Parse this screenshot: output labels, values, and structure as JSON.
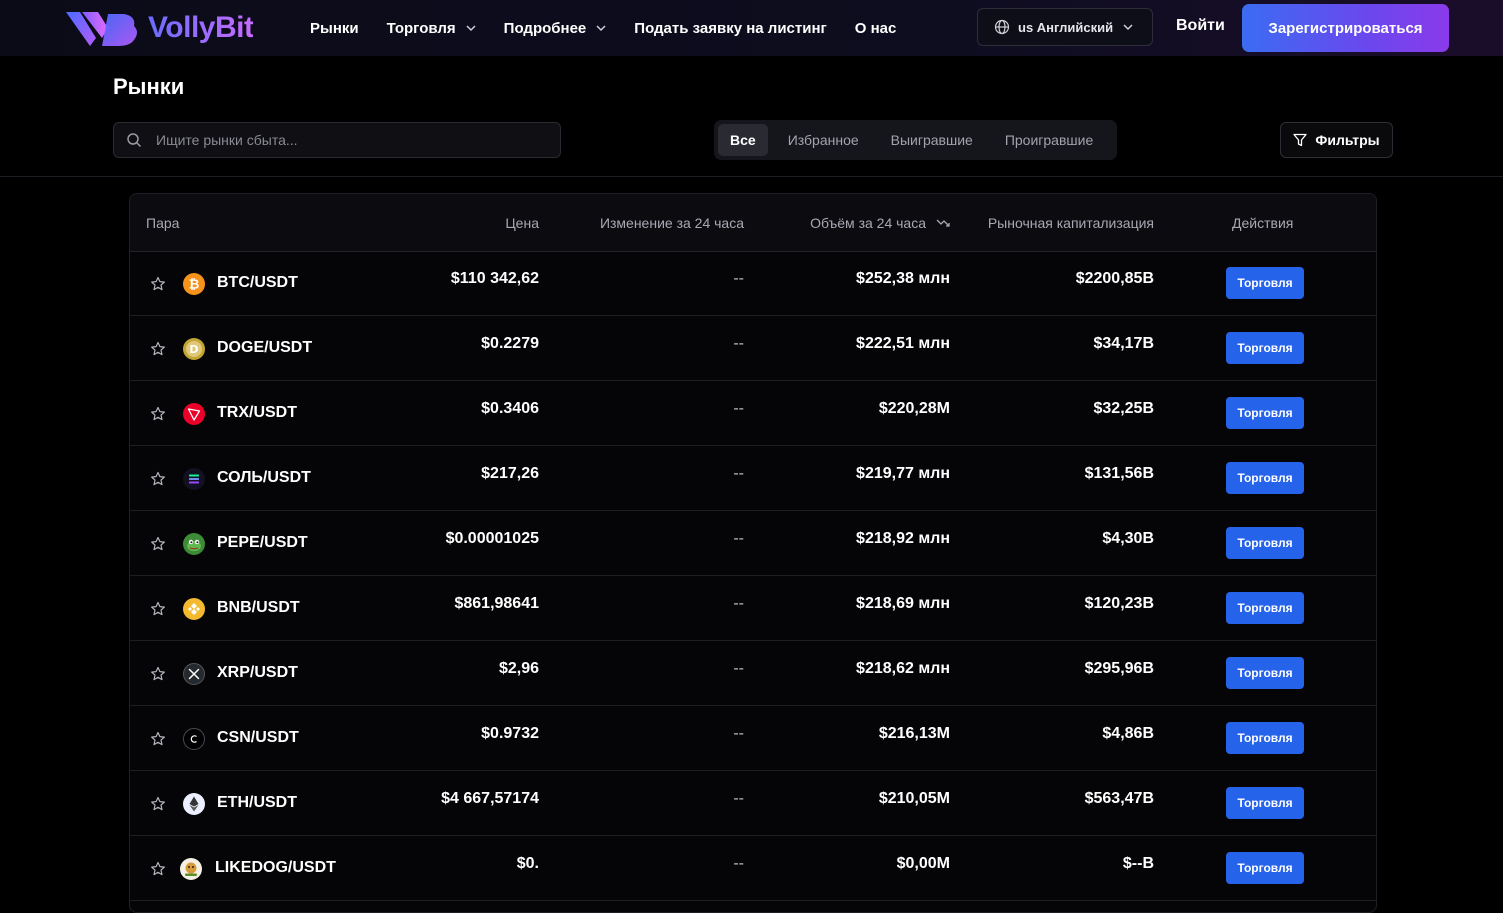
{
  "header": {
    "logo_text": "VollyBit",
    "nav": [
      {
        "label": "Рынки",
        "has_dropdown": false
      },
      {
        "label": "Торговля",
        "has_dropdown": true
      },
      {
        "label": "Подробнее",
        "has_dropdown": true
      },
      {
        "label": "Подать заявку на листинг",
        "has_dropdown": false
      },
      {
        "label": "О нас",
        "has_dropdown": false
      }
    ],
    "language": "us Английский",
    "login_label": "Войти",
    "register_label": "Зарегистрироваться"
  },
  "page": {
    "title": "Рынки",
    "search_placeholder": "Ищите рынки сбыта...",
    "tabs": [
      {
        "label": "Все",
        "active": true
      },
      {
        "label": "Избранное",
        "active": false
      },
      {
        "label": "Выигравшие",
        "active": false
      },
      {
        "label": "Проигравшие",
        "active": false
      }
    ],
    "filters_label": "Фильтры"
  },
  "table": {
    "columns": {
      "pair": "Пара",
      "price": "Цена",
      "change": "Изменение за 24 часа",
      "volume": "Объём за 24 часа",
      "market_cap": "Рыночная капитализация",
      "actions": "Действия"
    },
    "trade_label": "Торговля",
    "rows": [
      {
        "pair": "BTC/USDT",
        "icon": "btc-icon",
        "price": "$110 342,62",
        "change": "--",
        "volume": "$252,38 млн",
        "market_cap": "$2200,85B"
      },
      {
        "pair": "DOGE/USDT",
        "icon": "doge-icon",
        "price": "$0.2279",
        "change": "--",
        "volume": "$222,51 млн",
        "market_cap": "$34,17B"
      },
      {
        "pair": "TRX/USDT",
        "icon": "trx-icon",
        "price": "$0.3406",
        "change": "--",
        "volume": "$220,28M",
        "market_cap": "$32,25B"
      },
      {
        "pair": "СОЛЬ/USDT",
        "icon": "sol-icon",
        "price": "$217,26",
        "change": "--",
        "volume": "$219,77 млн",
        "market_cap": "$131,56B"
      },
      {
        "pair": "PEPE/USDT",
        "icon": "pepe-icon",
        "price": "$0.00001025",
        "change": "--",
        "volume": "$218,92 млн",
        "market_cap": "$4,30B"
      },
      {
        "pair": "BNB/USDT",
        "icon": "bnb-icon",
        "price": "$861,98641",
        "change": "--",
        "volume": "$218,69 млн",
        "market_cap": "$120,23B"
      },
      {
        "pair": "XRP/USDT",
        "icon": "xrp-icon",
        "price": "$2,96",
        "change": "--",
        "volume": "$218,62 млн",
        "market_cap": "$295,96B"
      },
      {
        "pair": "CSN/USDT",
        "icon": "csn-icon",
        "price": "$0.9732",
        "change": "--",
        "volume": "$216,13M",
        "market_cap": "$4,86B"
      },
      {
        "pair": "ETH/USDT",
        "icon": "eth-icon",
        "price": "$4 667,57174",
        "change": "--",
        "volume": "$210,05M",
        "market_cap": "$563,47B"
      },
      {
        "pair": "LIKEDOG/USDT",
        "icon": "likedog-icon",
        "price": "$0.",
        "change": "--",
        "volume": "$0,00M",
        "market_cap": "$--B"
      }
    ]
  },
  "colors": {
    "background": "#000000",
    "accent_blue": "#2563eb",
    "register_gradient_start": "#3b6cf2",
    "register_gradient_end": "#8a3aea"
  }
}
